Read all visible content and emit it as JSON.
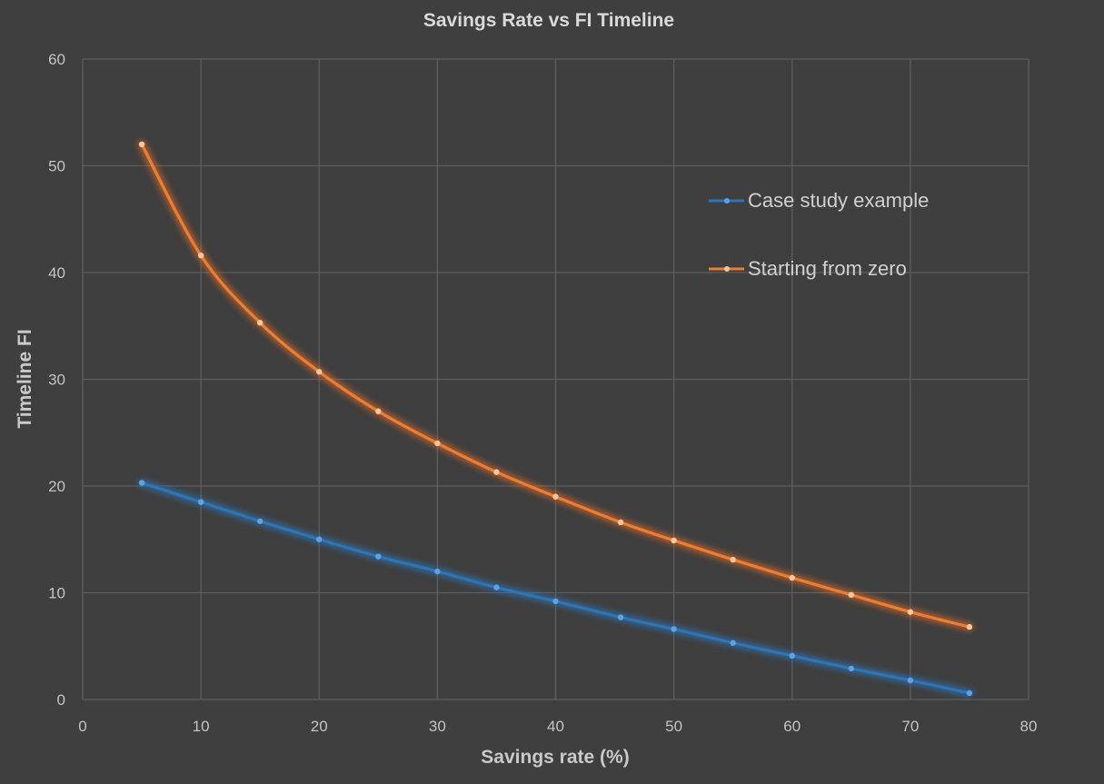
{
  "chart_data": {
    "type": "scatter",
    "title": "Savings Rate vs FI  Timeline",
    "xlabel": "Savings rate (%)",
    "ylabel": "Timeline FI",
    "xlim": [
      0,
      80
    ],
    "ylim": [
      0,
      60
    ],
    "x_ticks": [
      0,
      10,
      20,
      30,
      40,
      50,
      60,
      70,
      80
    ],
    "y_ticks": [
      0,
      10,
      20,
      30,
      40,
      50,
      60
    ],
    "grid": true,
    "legend": "right-center",
    "series": [
      {
        "name": "Case study example",
        "color": "#2e75b6",
        "marker_color": "#5ba3e6",
        "glow": "#2f6ea8",
        "x": [
          5,
          10,
          15,
          20,
          25,
          30,
          35,
          40,
          45.5,
          50,
          55,
          60,
          65,
          70,
          75
        ],
        "y": [
          20.3,
          18.5,
          16.7,
          15.0,
          13.4,
          12.0,
          10.5,
          9.2,
          7.7,
          6.6,
          5.3,
          4.1,
          2.9,
          1.8,
          0.6
        ]
      },
      {
        "name": "Starting from zero",
        "color": "#ed7d31",
        "marker_color": "#ffc79a",
        "glow": "#c8642a",
        "x": [
          5,
          10,
          15,
          20,
          25,
          30,
          35,
          40,
          45.5,
          50,
          55,
          60,
          65,
          70,
          75
        ],
        "y": [
          52.0,
          41.6,
          35.3,
          30.7,
          27.0,
          24.0,
          21.3,
          19.0,
          16.6,
          14.9,
          13.1,
          11.4,
          9.8,
          8.2,
          6.8
        ]
      }
    ]
  }
}
